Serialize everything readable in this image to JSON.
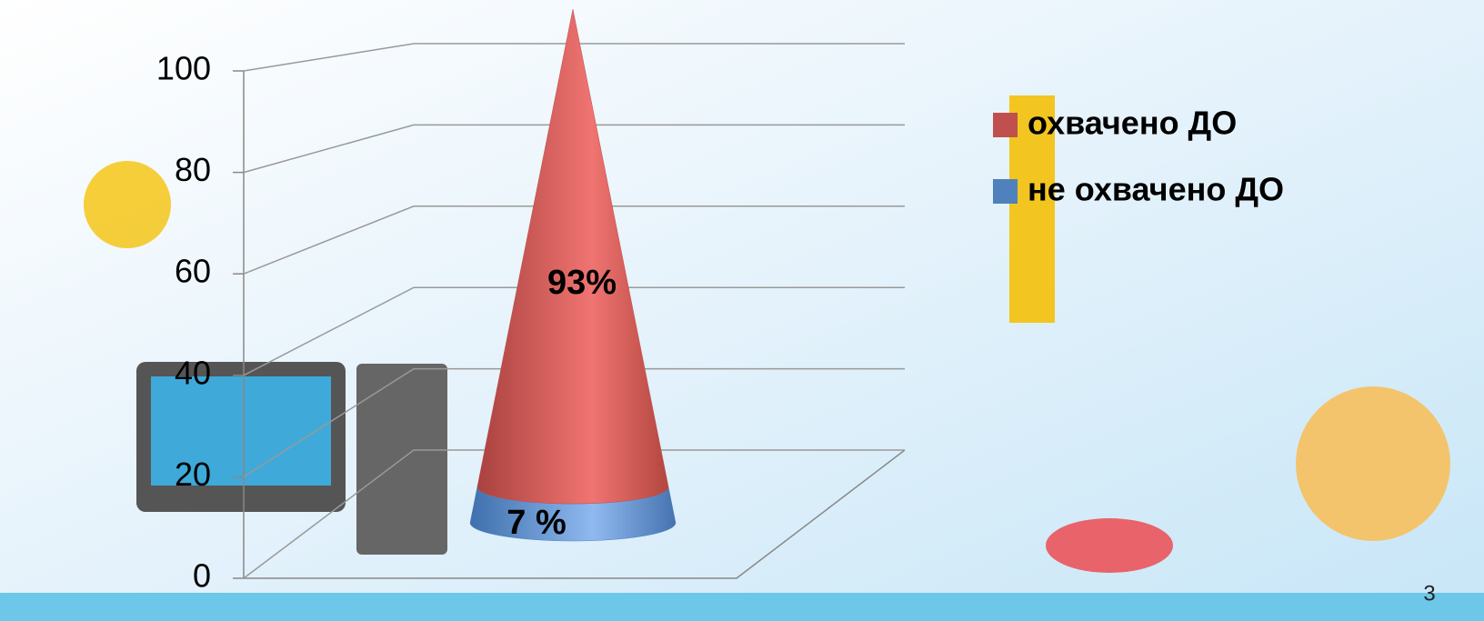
{
  "chart_data": {
    "type": "stacked-cone",
    "categories": [
      null
    ],
    "series": [
      {
        "name": "охвачено ДО",
        "color": "#c0504d",
        "values": [
          93
        ],
        "value_labels": [
          "93%"
        ]
      },
      {
        "name": "не охвачено ДО",
        "color": "#4f81bd",
        "values": [
          7
        ],
        "value_labels": [
          "7 %"
        ]
      }
    ],
    "ylim": [
      0,
      100
    ],
    "yticks": [
      0,
      20,
      40,
      60,
      80,
      100
    ],
    "grid": true,
    "legend": "top-right"
  },
  "page_number": 3
}
